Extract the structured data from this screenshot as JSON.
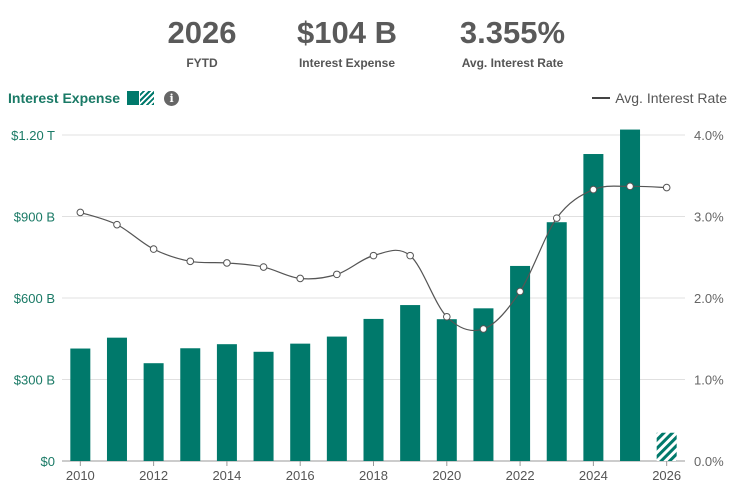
{
  "header": {
    "year": "2026",
    "year_label": "FYTD",
    "expense": "$104 B",
    "expense_label": "Interest Expense",
    "rate": "3.355%",
    "rate_label": "Avg. Interest Rate"
  },
  "legend": {
    "bars_label": "Interest Expense",
    "line_label": "Avg. Interest Rate",
    "info_glyph": "i"
  },
  "colors": {
    "bar": "#00796b",
    "line": "#555555",
    "left_axis_text": "#1a7a66",
    "grid": "#e0e0e0"
  },
  "chart_data": {
    "type": "bar",
    "categories": [
      "2010",
      "2011",
      "2012",
      "2013",
      "2014",
      "2015",
      "2016",
      "2017",
      "2018",
      "2019",
      "2020",
      "2021",
      "2022",
      "2023",
      "2024",
      "2025",
      "2026"
    ],
    "series": [
      {
        "name": "Interest Expense",
        "axis": "left",
        "unit": "$B",
        "values": [
          414,
          454,
          360,
          415,
          430,
          402,
          432,
          458,
          523,
          574,
          522,
          562,
          718,
          879,
          1130,
          1220,
          104
        ],
        "hatched_categories": [
          "2026"
        ]
      },
      {
        "name": "Avg. Interest Rate",
        "axis": "right",
        "type": "line",
        "unit": "%",
        "values": [
          3.05,
          2.9,
          2.6,
          2.45,
          2.43,
          2.38,
          2.24,
          2.29,
          2.52,
          2.52,
          1.77,
          1.62,
          2.08,
          2.98,
          3.33,
          3.37,
          3.355
        ]
      }
    ],
    "y_left": {
      "ylim": [
        0,
        1200
      ],
      "ticks": [
        0,
        300,
        600,
        900,
        1200
      ],
      "tick_labels": [
        "$0",
        "$300 B",
        "$600 B",
        "$900 B",
        "$1.20 T"
      ]
    },
    "y_right": {
      "ylim": [
        0,
        4
      ],
      "ticks": [
        0,
        1,
        2,
        3,
        4
      ],
      "tick_labels": [
        "0.0%",
        "1.0%",
        "2.0%",
        "3.0%",
        "4.0%"
      ]
    },
    "x_tick_labels": [
      "2010",
      "2012",
      "2014",
      "2016",
      "2018",
      "2020",
      "2022",
      "2024",
      "2026"
    ],
    "grid": true,
    "legend_placement": "top"
  }
}
